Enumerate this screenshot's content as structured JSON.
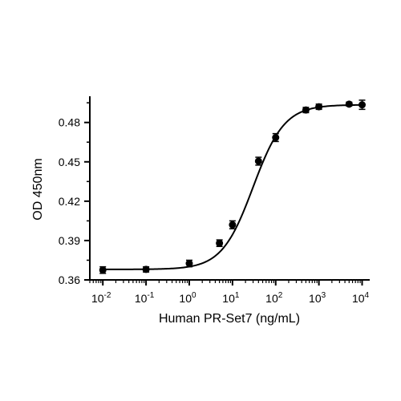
{
  "chart_data": {
    "type": "scatter",
    "title": "",
    "xlabel": "Human PR-Set7 (ng/mL)",
    "ylabel": "OD 450nm",
    "x_scale": "log",
    "xlim": [
      0.005,
      15000
    ],
    "ylim": [
      0.36,
      0.5
    ],
    "x_ticks": [
      {
        "value": 0.01,
        "base": "10",
        "exp": "-2"
      },
      {
        "value": 0.1,
        "base": "10",
        "exp": "-1"
      },
      {
        "value": 1,
        "base": "10",
        "exp": "0"
      },
      {
        "value": 10,
        "base": "10",
        "exp": "1"
      },
      {
        "value": 100,
        "base": "10",
        "exp": "2"
      },
      {
        "value": 1000,
        "base": "10",
        "exp": "3"
      },
      {
        "value": 10000,
        "base": "10",
        "exp": "4"
      }
    ],
    "y_ticks": [
      0.36,
      0.39,
      0.42,
      0.45,
      0.48
    ],
    "y_tick_labels": [
      "0.36",
      "0.39",
      "0.42",
      "0.45",
      "0.48"
    ],
    "grid": false,
    "legend": "none",
    "series": [
      {
        "points": [
          {
            "x": 0.01,
            "y": 0.3675,
            "err": 0.0025
          },
          {
            "x": 0.1,
            "y": 0.368,
            "err": 0.002
          },
          {
            "x": 1,
            "y": 0.3725,
            "err": 0.0025
          },
          {
            "x": 5,
            "y": 0.388,
            "err": 0.0025
          },
          {
            "x": 10,
            "y": 0.402,
            "err": 0.003
          },
          {
            "x": 40,
            "y": 0.4505,
            "err": 0.003
          },
          {
            "x": 100,
            "y": 0.4685,
            "err": 0.003
          },
          {
            "x": 500,
            "y": 0.4895,
            "err": 0.002
          },
          {
            "x": 1000,
            "y": 0.492,
            "err": 0.002
          },
          {
            "x": 5000,
            "y": 0.494,
            "err": 0.0015
          },
          {
            "x": 10000,
            "y": 0.4935,
            "err": 0.0035
          }
        ],
        "fit": {
          "model": "4PL",
          "bottom": 0.368,
          "top": 0.4935,
          "ec50": 30,
          "hill": 1.2
        }
      }
    ],
    "colors": {
      "points": "#000000",
      "line": "#000000",
      "axes": "#000000"
    }
  }
}
